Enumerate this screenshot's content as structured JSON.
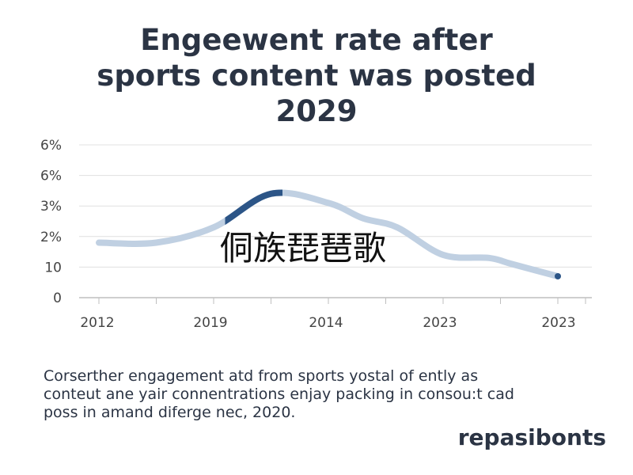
{
  "title_lines": [
    "Engeewent rate after",
    "sports content was posted",
    "2029"
  ],
  "overlay_text": "侗族琵琶歌",
  "caption_lines": [
    "Corserther engagement atd from sports yostal of ently as",
    "conteut ane yair connentrations enjay packing in consou:t cad",
    "poss in amand diferge nec, 2020."
  ],
  "brand": "repasibonts",
  "chart_data": {
    "type": "line",
    "title": "Engeewent rate after sports content was posted 2029",
    "y_tick_labels": [
      "6%",
      "6%",
      "3%",
      "2%",
      "10",
      "0"
    ],
    "x_tick_labels": [
      "2012",
      "2019",
      "2014",
      "2023",
      "2023"
    ],
    "ylim": [
      0,
      5
    ],
    "xlim": [
      0,
      4
    ],
    "grid": true,
    "series": [
      {
        "x": [
          0,
          0.5,
          1.0,
          1.5,
          2.0,
          2.3,
          2.6,
          3.0,
          3.4,
          3.6,
          4.0
        ],
        "values": [
          1.8,
          1.8,
          2.3,
          3.4,
          3.1,
          2.6,
          2.3,
          1.4,
          1.3,
          1.1,
          0.7
        ]
      }
    ],
    "highlight_x_range": [
      1.1,
      1.6
    ],
    "colors": {
      "line": "#c0d0e2",
      "highlight": "#2c5587",
      "grid": "#e0e0e0",
      "axis": "#bfbfbf",
      "tick_text": "#444444"
    }
  }
}
